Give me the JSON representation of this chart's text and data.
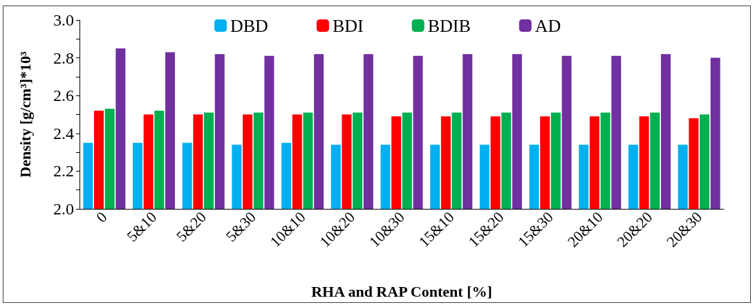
{
  "chart_data": {
    "type": "bar",
    "xlabel": "RHA and RAP Content [%]",
    "ylabel": "Density [g/cm³]*10³",
    "categories": [
      "0",
      "5&10",
      "5&20",
      "5&30",
      "10&10",
      "10&20",
      "10&30",
      "15&10",
      "15&20",
      "15&30",
      "20&10",
      "20&20",
      "20&30"
    ],
    "series": [
      {
        "name": "DBD",
        "color": "#00b0f0",
        "values": [
          2.35,
          2.35,
          2.35,
          2.34,
          2.35,
          2.34,
          2.34,
          2.34,
          2.34,
          2.34,
          2.34,
          2.34,
          2.34
        ]
      },
      {
        "name": "BDI",
        "color": "#ff0000",
        "values": [
          2.52,
          2.5,
          2.5,
          2.5,
          2.5,
          2.5,
          2.49,
          2.49,
          2.49,
          2.49,
          2.49,
          2.49,
          2.48
        ]
      },
      {
        "name": "BDIB",
        "color": "#00b050",
        "values": [
          2.53,
          2.52,
          2.51,
          2.51,
          2.51,
          2.51,
          2.51,
          2.51,
          2.51,
          2.51,
          2.51,
          2.51,
          2.5
        ]
      },
      {
        "name": "AD",
        "color": "#7030a0",
        "values": [
          2.85,
          2.83,
          2.82,
          2.81,
          2.82,
          2.82,
          2.81,
          2.82,
          2.82,
          2.81,
          2.81,
          2.82,
          2.8
        ]
      }
    ],
    "ylim": [
      2.0,
      3.0
    ],
    "yticks": [
      {
        "value": 2,
        "label": "2.0"
      },
      {
        "value": 2.1,
        "label": null
      },
      {
        "value": 2.2,
        "label": "2.2"
      },
      {
        "value": 2.3,
        "label": null
      },
      {
        "value": 2.4,
        "label": "2.4"
      },
      {
        "value": 2.5,
        "label": null
      },
      {
        "value": 2.6,
        "label": "2.6"
      },
      {
        "value": 2.7,
        "label": null
      },
      {
        "value": 2.8,
        "label": "2.8"
      },
      {
        "value": 2.9,
        "label": null
      },
      {
        "value": 3,
        "label": "3.0"
      }
    ],
    "grid": false,
    "legend": "top"
  }
}
